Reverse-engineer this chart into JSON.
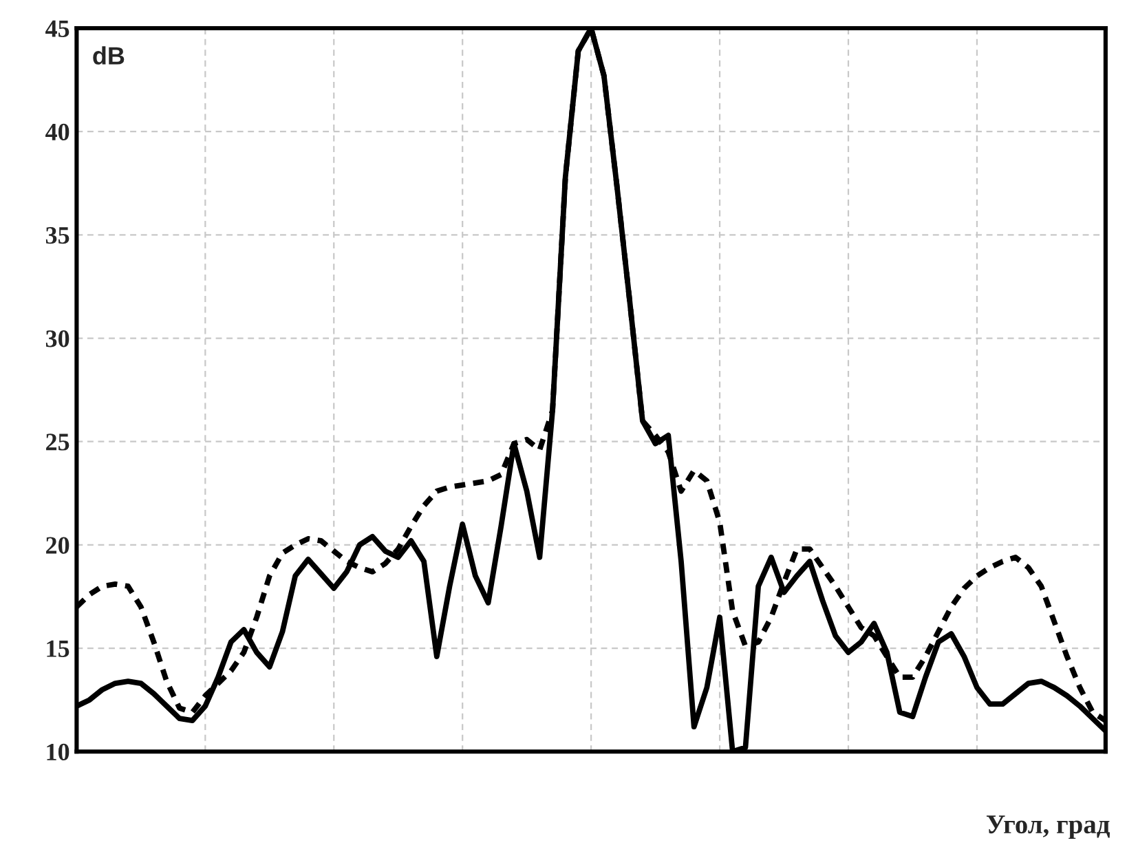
{
  "chart_data": {
    "type": "line",
    "ylabel": "dB",
    "xlabel": "Угол, град",
    "categories": [
      null,
      null,
      null,
      null,
      null,
      null,
      null,
      null,
      null,
      null,
      null,
      null,
      null,
      null,
      null,
      null,
      null,
      null,
      null,
      null,
      null,
      null,
      null,
      null,
      null,
      null,
      null,
      null,
      null,
      null,
      null,
      null,
      null,
      null,
      null,
      null,
      null,
      null,
      null,
      null,
      null,
      null,
      null,
      null,
      null,
      null,
      null,
      null,
      null,
      null,
      null,
      null,
      null,
      null,
      null,
      null,
      null,
      null,
      null,
      null,
      null,
      null,
      null,
      null,
      null,
      null,
      null,
      null,
      null,
      null,
      null,
      null,
      null,
      null,
      null,
      null,
      null,
      null,
      null,
      null,
      null
    ],
    "series": [
      {
        "color": "#000000",
        "line_style": "solid",
        "values": [
          12.2,
          12.5,
          13.0,
          13.3,
          13.4,
          13.3,
          12.8,
          12.2,
          11.6,
          11.5,
          12.2,
          13.6,
          15.3,
          15.9,
          14.8,
          14.1,
          15.8,
          18.5,
          19.3,
          18.6,
          17.9,
          18.7,
          20.0,
          20.4,
          19.7,
          19.4,
          20.2,
          19.2,
          14.6,
          18.0,
          21.0,
          18.5,
          17.2,
          20.9,
          24.9,
          22.6,
          19.4,
          26.5,
          37.8,
          43.9,
          45.0,
          42.7,
          37.4,
          31.8,
          26.0,
          24.9,
          25.3,
          19.2,
          11.2,
          13.1,
          16.5,
          10.0,
          10.2,
          18.0,
          19.4,
          17.7,
          18.5,
          19.2,
          17.3,
          15.6,
          14.8,
          15.3,
          16.2,
          14.8,
          11.9,
          11.7,
          13.6,
          15.3,
          15.7,
          14.6,
          13.1,
          12.3,
          12.3,
          12.8,
          13.3,
          13.4,
          13.1,
          12.7,
          12.2,
          11.6,
          11.0
        ]
      },
      {
        "color": "#000000",
        "line_style": "dashed",
        "values": [
          17.0,
          17.6,
          18.0,
          18.1,
          18.0,
          17.0,
          15.3,
          13.4,
          12.1,
          11.9,
          12.7,
          13.3,
          13.9,
          14.8,
          16.5,
          18.5,
          19.6,
          20.0,
          20.3,
          20.2,
          19.7,
          19.2,
          18.9,
          18.7,
          19.1,
          19.8,
          20.9,
          21.9,
          22.6,
          22.8,
          22.9,
          23.0,
          23.1,
          23.4,
          24.9,
          25.1,
          24.6,
          26.5,
          37.8,
          43.9,
          45.0,
          42.7,
          37.4,
          31.8,
          26.0,
          25.3,
          24.5,
          22.6,
          23.6,
          23.1,
          21.1,
          16.8,
          15.1,
          15.3,
          16.5,
          18.2,
          19.8,
          19.8,
          18.9,
          18.0,
          17.0,
          16.0,
          15.6,
          14.6,
          13.6,
          13.6,
          14.6,
          15.8,
          17.0,
          17.9,
          18.5,
          18.9,
          19.2,
          19.4,
          18.9,
          18.0,
          16.3,
          14.6,
          13.1,
          11.9,
          11.5
        ]
      }
    ],
    "ylim": [
      10,
      45
    ],
    "yticks": [
      10,
      15,
      20,
      25,
      30,
      35,
      40,
      45
    ],
    "grid": true,
    "tick_labels": "y"
  }
}
